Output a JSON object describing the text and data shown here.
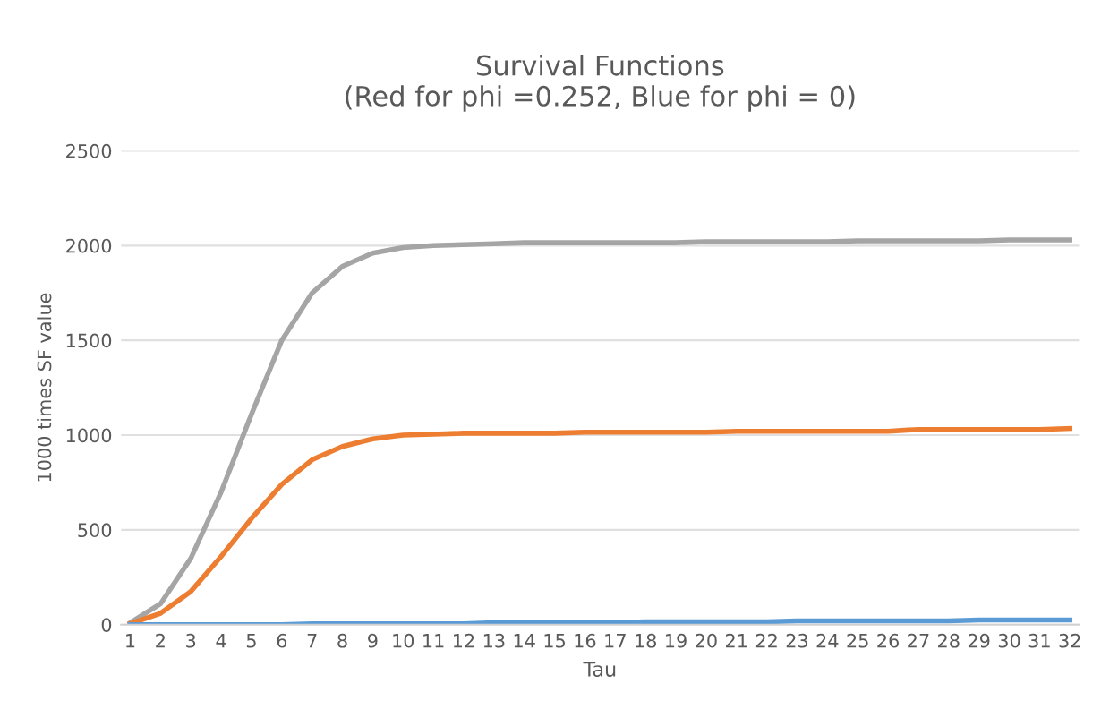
{
  "chart_data": {
    "type": "line",
    "title": "Survival Functions\n(Red for phi =0.252, Blue for phi = 0)",
    "xlabel": "Tau",
    "ylabel": "1000 times SF value",
    "categories": [
      "1",
      "2",
      "3",
      "4",
      "5",
      "6",
      "7",
      "8",
      "9",
      "10",
      "11",
      "12",
      "13",
      "14",
      "15",
      "16",
      "17",
      "18",
      "19",
      "20",
      "21",
      "22",
      "23",
      "24",
      "25",
      "26",
      "27",
      "28",
      "29",
      "30",
      "31",
      "32"
    ],
    "series": [
      {
        "color": "#a5a5a5",
        "values": [
          10,
          110,
          350,
          700,
          1110,
          1500,
          1750,
          1890,
          1960,
          1990,
          2000,
          2005,
          2010,
          2015,
          2015,
          2015,
          2015,
          2015,
          2015,
          2020,
          2020,
          2020,
          2020,
          2020,
          2025,
          2025,
          2025,
          2025,
          2025,
          2030,
          2030,
          2030
        ]
      },
      {
        "color": "#ed7d31",
        "values": [
          5,
          60,
          175,
          360,
          560,
          740,
          870,
          940,
          980,
          1000,
          1005,
          1010,
          1010,
          1010,
          1010,
          1015,
          1015,
          1015,
          1015,
          1015,
          1020,
          1020,
          1020,
          1020,
          1020,
          1020,
          1030,
          1030,
          1030,
          1030,
          1030,
          1035
        ]
      },
      {
        "color": "#5b9bd5",
        "values": [
          0,
          0,
          0,
          0,
          0,
          0,
          5,
          5,
          5,
          5,
          5,
          5,
          10,
          10,
          10,
          10,
          10,
          15,
          15,
          15,
          15,
          15,
          20,
          20,
          20,
          20,
          20,
          20,
          25,
          25,
          25,
          25
        ]
      }
    ],
    "ylim": [
      0,
      2500
    ],
    "yticks": [
      0,
      500,
      1000,
      1500,
      2000,
      2500
    ],
    "grid": "y",
    "legend": false,
    "marker": "none",
    "line_style": "solid"
  }
}
